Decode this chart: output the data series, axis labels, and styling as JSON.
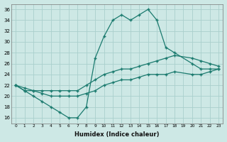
{
  "title": "",
  "xlabel": "Humidex (Indice chaleur)",
  "background_color": "#cde8e5",
  "grid_color": "#aacfcc",
  "line_color": "#1a7a6e",
  "xlim": [
    -0.5,
    23.5
  ],
  "ylim": [
    15,
    37
  ],
  "xticks": [
    0,
    1,
    2,
    3,
    4,
    5,
    6,
    7,
    8,
    9,
    10,
    11,
    12,
    13,
    14,
    15,
    16,
    17,
    18,
    19,
    20,
    21,
    22,
    23
  ],
  "yticks": [
    16,
    18,
    20,
    22,
    24,
    26,
    28,
    30,
    32,
    34,
    36
  ],
  "series": {
    "line1_main": {
      "x": [
        0,
        1,
        2,
        3,
        4,
        5,
        6,
        7,
        8,
        9,
        10,
        11,
        12,
        13,
        14,
        15,
        16,
        17,
        18,
        20,
        21,
        22,
        23
      ],
      "y": [
        22,
        21,
        20,
        19,
        18,
        17,
        16,
        16,
        18,
        27,
        31,
        34,
        35,
        34,
        35,
        36,
        34,
        29,
        28,
        26,
        25,
        25,
        25
      ]
    },
    "line2_upper": {
      "x": [
        0,
        1,
        2,
        3,
        4,
        5,
        6,
        7,
        8,
        9,
        10,
        11,
        12,
        13,
        14,
        15,
        16,
        17,
        18,
        20,
        21,
        22,
        23
      ],
      "y": [
        22,
        21.5,
        21,
        21,
        21,
        21,
        21,
        21,
        22,
        23,
        24,
        24.5,
        25,
        25,
        25.5,
        26,
        26.5,
        27,
        27.5,
        27,
        26.5,
        26,
        25.5
      ]
    },
    "line3_lower": {
      "x": [
        0,
        1,
        2,
        3,
        4,
        5,
        6,
        7,
        8,
        9,
        10,
        11,
        12,
        13,
        14,
        15,
        16,
        17,
        18,
        20,
        21,
        22,
        23
      ],
      "y": [
        22,
        21,
        21,
        20.5,
        20,
        20,
        20,
        20,
        20.5,
        21,
        22,
        22.5,
        23,
        23,
        23.5,
        24,
        24,
        24,
        24.5,
        24,
        24,
        24.5,
        25
      ]
    }
  }
}
